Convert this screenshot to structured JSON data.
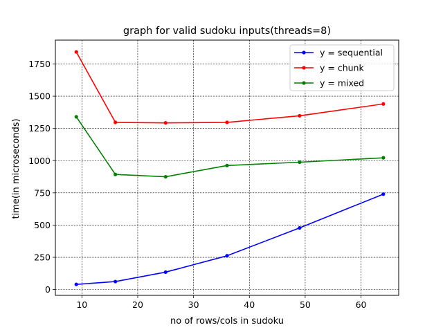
{
  "chart_data": {
    "type": "line",
    "title": "graph for valid sudoku inputs(threads=8)",
    "xlabel": "no of rows/cols in sudoku",
    "ylabel": "time(in microseconds)",
    "xlim": [
      5.25,
      66.75
    ],
    "ylim": [
      -45,
      1935
    ],
    "xticks": [
      10,
      20,
      30,
      40,
      50,
      60
    ],
    "yticks": [
      0,
      250,
      500,
      750,
      1000,
      1250,
      1500,
      1750
    ],
    "grid": true,
    "legend_position": "top-right",
    "x": [
      9,
      16,
      25,
      36,
      49,
      64
    ],
    "series": [
      {
        "name": "y = sequential",
        "color": "#0000ff",
        "values": [
          40,
          62,
          135,
          262,
          478,
          740
        ]
      },
      {
        "name": "y = chunk",
        "color": "#ff0000",
        "values": [
          1843,
          1297,
          1293,
          1297,
          1348,
          1440
        ]
      },
      {
        "name": "y = mixed",
        "color": "#008000",
        "values": [
          1340,
          893,
          875,
          962,
          988,
          1022
        ]
      }
    ]
  }
}
